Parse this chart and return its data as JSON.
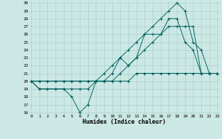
{
  "xlabel": "Humidex (Indice chaleur)",
  "background_color": "#cce8e4",
  "grid_color": "#aacfcb",
  "line_color": "#006060",
  "xlim": [
    0,
    23
  ],
  "ylim": [
    16,
    30
  ],
  "xticks": [
    0,
    1,
    2,
    3,
    4,
    5,
    6,
    7,
    8,
    9,
    10,
    11,
    12,
    13,
    14,
    15,
    16,
    17,
    18,
    19,
    20,
    21,
    22,
    23
  ],
  "yticks": [
    16,
    17,
    18,
    19,
    20,
    21,
    22,
    23,
    24,
    25,
    26,
    27,
    28,
    29,
    30
  ],
  "series": [
    [
      20,
      19,
      19,
      19,
      19,
      18,
      16,
      17,
      20,
      20,
      21,
      23,
      22,
      23,
      26,
      26,
      26,
      28,
      28,
      25,
      24,
      21,
      21,
      21
    ],
    [
      20,
      19,
      19,
      19,
      19,
      19,
      19,
      19,
      20,
      21,
      22,
      23,
      24,
      25,
      26,
      27,
      28,
      29,
      30,
      29,
      25,
      24,
      21,
      21
    ],
    [
      20,
      20,
      20,
      20,
      20,
      20,
      20,
      20,
      20,
      20,
      20,
      20,
      20,
      21,
      21,
      21,
      21,
      21,
      21,
      21,
      21,
      21,
      21,
      21
    ],
    [
      20,
      20,
      20,
      20,
      20,
      20,
      20,
      20,
      20,
      20,
      20,
      21,
      22,
      23,
      24,
      25,
      26,
      27,
      27,
      27,
      27,
      21,
      21,
      21
    ]
  ]
}
